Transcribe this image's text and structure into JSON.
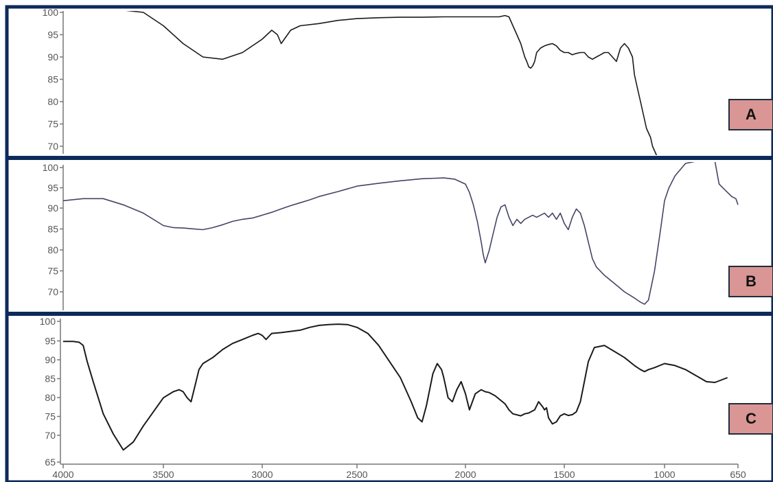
{
  "colors": {
    "frame": "#0d2a5a",
    "axis": "#777777",
    "tick_text": "#555555",
    "line_dark": "#1a1a1a",
    "line_blue": "#444466",
    "tag_fill": "#d99694",
    "tag_border": "#1f2d3d"
  },
  "chart_data": [
    {
      "type": "line",
      "panel_label": "A",
      "xlim": [
        4000,
        650
      ],
      "ylim": [
        68,
        101
      ],
      "yticks": [
        "100",
        "95",
        "90",
        "85",
        "80",
        "75",
        "70"
      ],
      "xticks": [],
      "grid": false,
      "series": [
        {
          "x": [
            4000,
            3850,
            3700,
            3600,
            3500,
            3400,
            3300,
            3200,
            3100,
            3000,
            2950,
            2920,
            2900,
            2850,
            2800,
            2700,
            2600,
            2500,
            2400,
            2300,
            2200,
            2100,
            2000,
            1900,
            1830,
            1800,
            1780,
            1760,
            1740,
            1720,
            1700,
            1690,
            1680,
            1670,
            1660,
            1650,
            1640,
            1620,
            1600,
            1580,
            1560,
            1540,
            1520,
            1500,
            1480,
            1460,
            1440,
            1420,
            1400,
            1380,
            1360,
            1340,
            1320,
            1300,
            1280,
            1260,
            1240,
            1220,
            1200,
            1180,
            1160,
            1150,
            1140,
            1130,
            1120,
            1110,
            1100,
            1090,
            1080,
            1070,
            1060,
            1050,
            1040
          ],
          "y": [
            100.5,
            100.5,
            100.5,
            100,
            97,
            93,
            90,
            89.5,
            91,
            94,
            96,
            95,
            93,
            96,
            97,
            97.5,
            98.2,
            98.6,
            98.8,
            98.9,
            98.9,
            99,
            99,
            99,
            99,
            99.3,
            99,
            97,
            95,
            93,
            90,
            89,
            87.8,
            87.5,
            88,
            89,
            91,
            92,
            92.5,
            92.8,
            93,
            92.5,
            91.5,
            91,
            91,
            90.5,
            90.8,
            91,
            91,
            90,
            89.5,
            90,
            90.5,
            91,
            91,
            90,
            89,
            92,
            93,
            92,
            90,
            86,
            84,
            82,
            80,
            78,
            76,
            74,
            73,
            72,
            70,
            69,
            68
          ]
        }
      ]
    },
    {
      "type": "line",
      "panel_label": "B",
      "xlim": [
        4000,
        650
      ],
      "ylim": [
        68,
        101
      ],
      "yticks": [
        "100",
        "95",
        "90",
        "85",
        "80",
        "75",
        "70"
      ],
      "xticks": [],
      "grid": false,
      "series": [
        {
          "x": [
            4000,
            3900,
            3800,
            3700,
            3600,
            3500,
            3450,
            3400,
            3350,
            3300,
            3250,
            3200,
            3150,
            3100,
            3050,
            3000,
            2950,
            2900,
            2850,
            2800,
            2750,
            2700,
            2600,
            2500,
            2400,
            2300,
            2200,
            2100,
            2050,
            2000,
            1980,
            1960,
            1940,
            1920,
            1910,
            1900,
            1880,
            1860,
            1840,
            1820,
            1800,
            1780,
            1760,
            1740,
            1720,
            1700,
            1680,
            1660,
            1640,
            1620,
            1600,
            1580,
            1560,
            1540,
            1520,
            1500,
            1480,
            1460,
            1440,
            1420,
            1400,
            1390,
            1380,
            1370,
            1360,
            1340,
            1300,
            1250,
            1200,
            1150,
            1120,
            1100,
            1080,
            1050,
            1020,
            1000,
            980,
            950,
            900,
            850,
            800,
            760,
            740,
            720,
            700,
            680,
            660,
            650
          ],
          "y": [
            92,
            92.5,
            92.5,
            91,
            89,
            86,
            85.5,
            85.4,
            85.2,
            85,
            85.5,
            86.2,
            87,
            87.5,
            87.8,
            88.5,
            89.2,
            90,
            90.8,
            91.5,
            92.2,
            93,
            94.2,
            95.5,
            96.2,
            96.8,
            97.3,
            97.5,
            97.2,
            96,
            94,
            91,
            87,
            82,
            79,
            77,
            80,
            84,
            88,
            90.5,
            91,
            88,
            86,
            87.5,
            86.5,
            87.5,
            88,
            88.5,
            88,
            88.5,
            89,
            88,
            89,
            87.5,
            89,
            86.5,
            85,
            88,
            90,
            89,
            86,
            84,
            82,
            80,
            78,
            76,
            74,
            72,
            70,
            68.5,
            67.5,
            67,
            68,
            75,
            85,
            92,
            95,
            98,
            101,
            101.5,
            102,
            101.5,
            96,
            95,
            94,
            93,
            92.5,
            91
          ]
        }
      ]
    },
    {
      "type": "line",
      "panel_label": "C",
      "xlim": [
        4000,
        650
      ],
      "ylim": [
        64,
        100.5
      ],
      "yticks": [
        "100",
        "95",
        "90",
        "85",
        "80",
        "75",
        "70",
        "65"
      ],
      "xticks": [
        "4000",
        "3500",
        "3000",
        "2500",
        "2000",
        "1500",
        "1000",
        "650"
      ],
      "grid": false,
      "series": [
        {
          "x": [
            4000,
            3950,
            3920,
            3900,
            3880,
            3850,
            3800,
            3750,
            3700,
            3650,
            3600,
            3550,
            3500,
            3450,
            3420,
            3400,
            3380,
            3360,
            3340,
            3320,
            3300,
            3250,
            3200,
            3150,
            3100,
            3050,
            3020,
            3000,
            2980,
            2960,
            2950,
            2900,
            2850,
            2800,
            2750,
            2700,
            2650,
            2600,
            2550,
            2500,
            2450,
            2400,
            2350,
            2300,
            2250,
            2220,
            2200,
            2180,
            2150,
            2130,
            2110,
            2100,
            2080,
            2060,
            2040,
            2020,
            2000,
            1980,
            1950,
            1920,
            1900,
            1880,
            1850,
            1800,
            1780,
            1760,
            1720,
            1700,
            1680,
            1650,
            1630,
            1610,
            1600,
            1590,
            1580,
            1560,
            1540,
            1520,
            1500,
            1480,
            1460,
            1440,
            1420,
            1400,
            1380,
            1350,
            1300,
            1250,
            1200,
            1150,
            1120,
            1100,
            1080,
            1050,
            1000,
            950,
            900,
            850,
            800,
            760,
            700
          ],
          "y": [
            95,
            95,
            94.8,
            94,
            90,
            85,
            77,
            72,
            68,
            70,
            74,
            77.5,
            81,
            82.5,
            83,
            82.5,
            81,
            80,
            84,
            88,
            89.5,
            91,
            93,
            94.5,
            95.5,
            96.5,
            97,
            96.5,
            95.5,
            96.5,
            97,
            97.2,
            97.5,
            97.8,
            98.5,
            99,
            99.2,
            99.3,
            99.2,
            98.5,
            97,
            94,
            90,
            86,
            80,
            76,
            75,
            79,
            87,
            89.5,
            88,
            86,
            81,
            80,
            83,
            85,
            82,
            78,
            82,
            83,
            82.5,
            82.3,
            81.5,
            79.5,
            78,
            77,
            76.5,
            77,
            77.2,
            78,
            80,
            78.8,
            78,
            78.5,
            76,
            74.5,
            75,
            76.5,
            77,
            76.6,
            76.8,
            77.5,
            80,
            85,
            90,
            93.5,
            94,
            92.5,
            91,
            89,
            88,
            87.5,
            88,
            88.5,
            89.5,
            89,
            88,
            86.5,
            85,
            84.8,
            86
          ]
        }
      ]
    }
  ]
}
